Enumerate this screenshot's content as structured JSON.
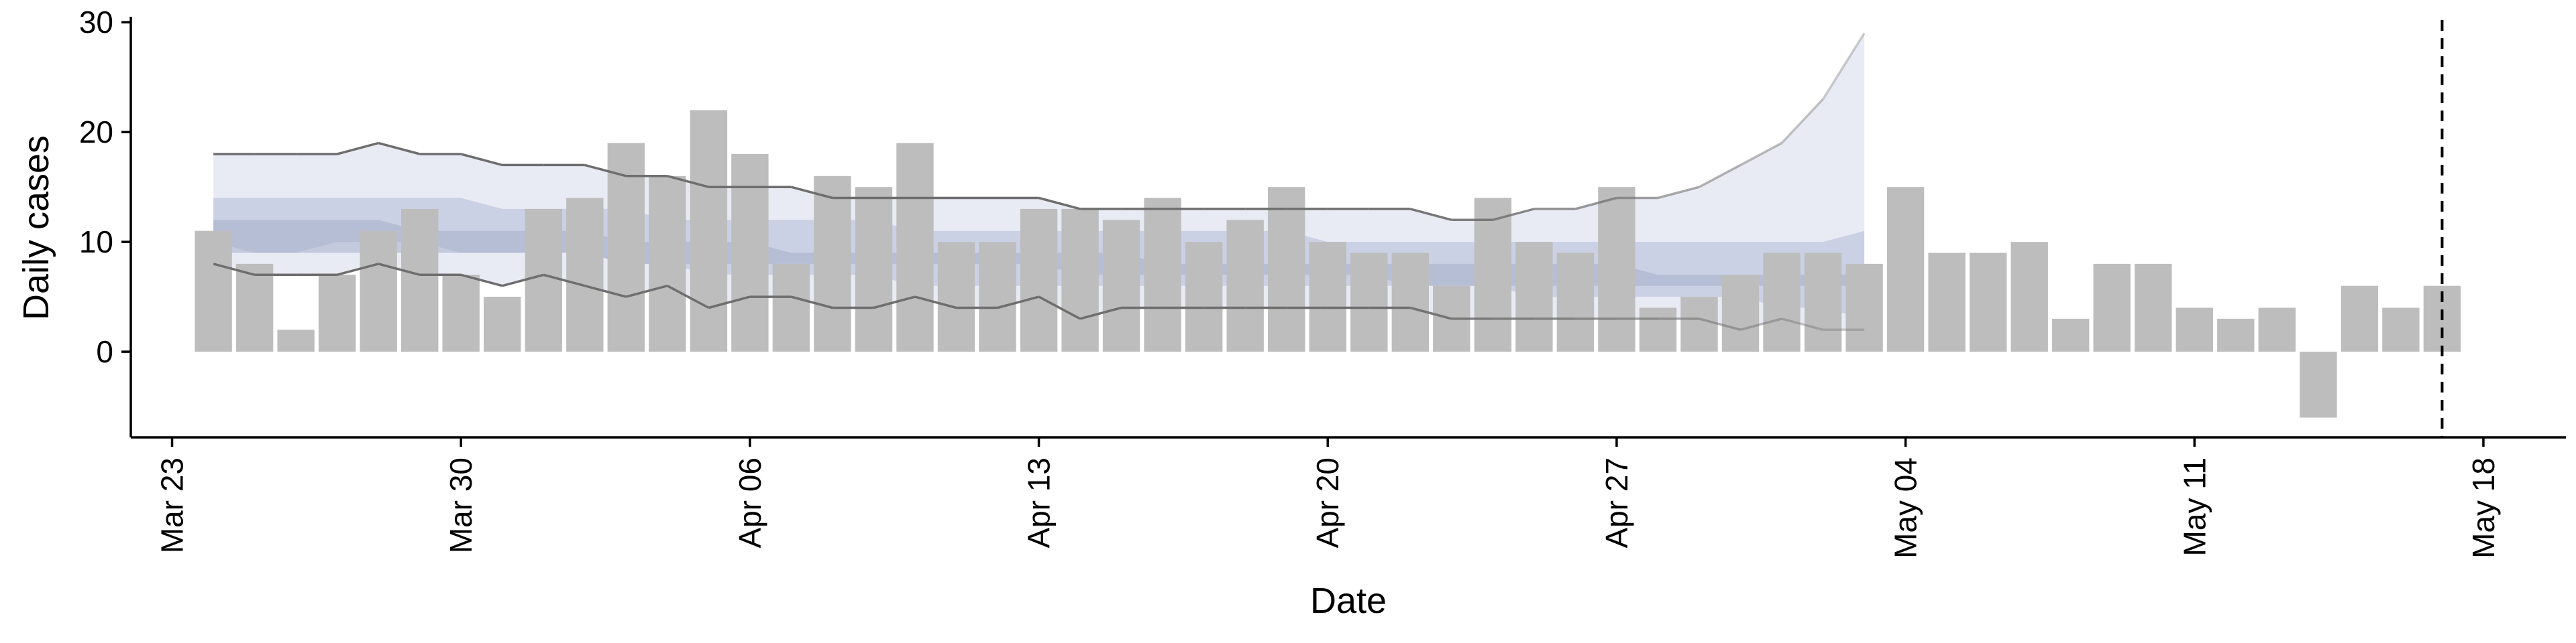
{
  "chart_data": {
    "type": "bar",
    "xlabel": "Date",
    "ylabel": "Daily cases",
    "ylim": [
      -7.8,
      30.5
    ],
    "yticks": [
      0,
      10,
      20,
      30
    ],
    "xticks": [
      "2020-03-23",
      "2020-03-30",
      "2020-04-06",
      "2020-04-13",
      "2020-04-20",
      "2020-04-27",
      "2020-05-04",
      "2020-05-11",
      "2020-05-18"
    ],
    "xtick_labels": [
      "Mar 23",
      "Mar 30",
      "Apr 06",
      "Apr 13",
      "Apr 20",
      "Apr 27",
      "May 04",
      "May 11",
      "May 18"
    ],
    "xlim": [
      "2020-03-22",
      "2020-05-20"
    ],
    "grid": false,
    "bars": {
      "dates": [
        "2020-03-24",
        "2020-03-25",
        "2020-03-26",
        "2020-03-27",
        "2020-03-28",
        "2020-03-29",
        "2020-03-30",
        "2020-03-31",
        "2020-04-01",
        "2020-04-02",
        "2020-04-03",
        "2020-04-04",
        "2020-04-05",
        "2020-04-06",
        "2020-04-07",
        "2020-04-08",
        "2020-04-09",
        "2020-04-10",
        "2020-04-11",
        "2020-04-12",
        "2020-04-13",
        "2020-04-14",
        "2020-04-15",
        "2020-04-16",
        "2020-04-17",
        "2020-04-18",
        "2020-04-19",
        "2020-04-20",
        "2020-04-21",
        "2020-04-22",
        "2020-04-23",
        "2020-04-24",
        "2020-04-25",
        "2020-04-26",
        "2020-04-27",
        "2020-04-28",
        "2020-04-29",
        "2020-04-30",
        "2020-05-01",
        "2020-05-02",
        "2020-05-03",
        "2020-05-04",
        "2020-05-05",
        "2020-05-06",
        "2020-05-07",
        "2020-05-08",
        "2020-05-09",
        "2020-05-10",
        "2020-05-11",
        "2020-05-12",
        "2020-05-13",
        "2020-05-14",
        "2020-05-15",
        "2020-05-16",
        "2020-05-17"
      ],
      "values": [
        11,
        8,
        2,
        7,
        11,
        13,
        7,
        5,
        13,
        14,
        19,
        16,
        22,
        18,
        8,
        16,
        15,
        19,
        10,
        10,
        13,
        13,
        12,
        14,
        10,
        12,
        15,
        10,
        9,
        9,
        6,
        14,
        10,
        9,
        15,
        4,
        5,
        7,
        9,
        9,
        8,
        15,
        9,
        9,
        10,
        3,
        8,
        8,
        4,
        3,
        4,
        -6,
        6,
        4,
        null
      ],
      "extra": {
        "date": "2020-05-17",
        "value": 6
      },
      "color": "#bdbdbd"
    },
    "forecast": {
      "dates": [
        "2020-03-24",
        "2020-03-25",
        "2020-03-26",
        "2020-03-27",
        "2020-03-28",
        "2020-03-29",
        "2020-03-30",
        "2020-03-31",
        "2020-04-01",
        "2020-04-02",
        "2020-04-03",
        "2020-04-04",
        "2020-04-05",
        "2020-04-06",
        "2020-04-07",
        "2020-04-08",
        "2020-04-09",
        "2020-04-10",
        "2020-04-11",
        "2020-04-12",
        "2020-04-13",
        "2020-04-14",
        "2020-04-15",
        "2020-04-16",
        "2020-04-17",
        "2020-04-18",
        "2020-04-19",
        "2020-04-20",
        "2020-04-21",
        "2020-04-22",
        "2020-04-23",
        "2020-04-24",
        "2020-04-25",
        "2020-04-26",
        "2020-04-27",
        "2020-04-28",
        "2020-04-29",
        "2020-04-30",
        "2020-05-01",
        "2020-05-02",
        "2020-05-03"
      ],
      "outer_upper": [
        18,
        18,
        18,
        18,
        19,
        18,
        18,
        17,
        17,
        17,
        16,
        16,
        15,
        15,
        15,
        14,
        14,
        14,
        14,
        14,
        14,
        13,
        13,
        13,
        13,
        13,
        13,
        13,
        13,
        13,
        12,
        12,
        13,
        13,
        14,
        14,
        15,
        17,
        19,
        23,
        29
      ],
      "outer_lower": [
        8,
        7,
        7,
        7,
        8,
        7,
        7,
        6,
        7,
        6,
        5,
        6,
        4,
        5,
        5,
        4,
        4,
        5,
        4,
        4,
        5,
        3,
        4,
        4,
        4,
        4,
        4,
        4,
        4,
        4,
        3,
        3,
        3,
        3,
        3,
        3,
        3,
        2,
        3,
        2,
        2
      ],
      "inner_upper": [
        14,
        14,
        14,
        14,
        14,
        14,
        14,
        13,
        13,
        13,
        13,
        12,
        12,
        12,
        12,
        12,
        12,
        11,
        11,
        11,
        11,
        11,
        11,
        11,
        11,
        11,
        11,
        10,
        10,
        10,
        10,
        10,
        10,
        10,
        10,
        10,
        10,
        10,
        10,
        10,
        11
      ],
      "inner_lower": [
        10,
        9,
        9,
        10,
        10,
        10,
        9,
        9,
        9,
        9,
        8,
        8,
        7,
        7,
        7,
        7,
        7,
        6,
        6,
        6,
        6,
        6,
        6,
        6,
        6,
        6,
        6,
        6,
        6,
        6,
        6,
        6,
        5,
        5,
        5,
        5,
        5,
        5,
        4,
        4,
        3
      ],
      "mid_upper": [
        12,
        12,
        12,
        12,
        12,
        11,
        11,
        11,
        11,
        11,
        10,
        10,
        10,
        10,
        9,
        9,
        9,
        9,
        9,
        9,
        9,
        9,
        9,
        8,
        8,
        8,
        8,
        8,
        8,
        8,
        8,
        8,
        8,
        8,
        8,
        7,
        7,
        7,
        7,
        7,
        7
      ],
      "mid_lower": [
        9,
        9,
        9,
        9,
        9,
        9,
        9,
        9,
        9,
        9,
        8,
        8,
        8,
        8,
        8,
        8,
        8,
        8,
        8,
        8,
        8,
        7,
        7,
        7,
        7,
        7,
        7,
        7,
        7,
        6,
        6,
        6,
        6,
        6,
        6,
        6,
        6,
        6,
        6,
        6,
        6
      ],
      "outer_color": "#e9ebf4",
      "inner_color": "#c3cbe0",
      "line_color": "#6e6e6e"
    },
    "vline": {
      "date": "2020-05-17",
      "style": "dashed",
      "color": "#000000"
    }
  }
}
